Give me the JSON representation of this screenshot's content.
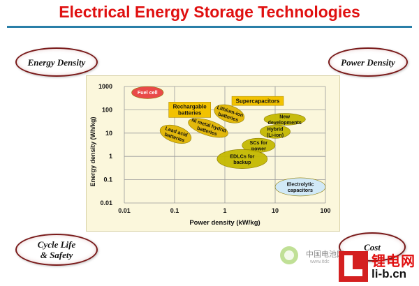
{
  "title": "Electrical Energy Storage Technologies",
  "corners": {
    "top_left": "Energy Density",
    "top_right": "Power Density",
    "bottom_left_line1": "Cycle Life",
    "bottom_left_line2": "& Safety",
    "bottom_right": "Cost"
  },
  "watermark": {
    "text": "中国电池网",
    "url": "www.itdc"
  },
  "logo": {
    "cn": "锂电网",
    "url": "li-b.cn"
  },
  "colors": {
    "title": "#e01010",
    "rule": "#2a7fa8",
    "panel": "#fbf7dc",
    "gold": "#e0b400",
    "olive": "#c4b800",
    "fuel": "#e84040",
    "capacitor": "#cfe8f8"
  },
  "chart_data": {
    "type": "scatter",
    "xlabel": "Power density (kW/kg)",
    "ylabel": "Energy density (Wh/kg)",
    "x_scale": "log",
    "y_scale": "log",
    "xlim": [
      0.01,
      100
    ],
    "ylim": [
      0.01,
      1000
    ],
    "x_ticks": [
      "0.01",
      "0.1",
      "1",
      "10",
      "100"
    ],
    "y_ticks": [
      "1000",
      "100",
      "10",
      "1",
      "0.1",
      "0.01"
    ],
    "grid": true,
    "regions": [
      {
        "label": "Fuel cell",
        "x_range": [
          0.014,
          0.06
        ],
        "y_range": [
          300,
          1000
        ],
        "color": "#e84040",
        "rotate": 0
      },
      {
        "label": "Lead acid batteries",
        "x_range": [
          0.05,
          0.22
        ],
        "y_range": [
          4,
          20
        ],
        "color": "#e0b400",
        "rotate": 18
      },
      {
        "label": "Ni metal hydrid batteries",
        "x_range": [
          0.18,
          1.2
        ],
        "y_range": [
          8,
          35
        ],
        "color": "#e0b400",
        "rotate": 18
      },
      {
        "label": "Lithium-ion batteries",
        "x_range": [
          0.6,
          2.5
        ],
        "y_range": [
          30,
          150
        ],
        "color": "#e0b400",
        "rotate": 18
      },
      {
        "label": "New developments",
        "x_range": [
          6,
          40
        ],
        "y_range": [
          22,
          70
        ],
        "color": "#c4b800",
        "rotate": 0
      },
      {
        "label": "Hybrid (Li-ion)",
        "x_range": [
          5,
          20
        ],
        "y_range": [
          6,
          22
        ],
        "color": "#c4b800",
        "rotate": 0
      },
      {
        "label": "SCs for power",
        "x_range": [
          2.2,
          10
        ],
        "y_range": [
          1.5,
          6
        ],
        "color": "#c4b800",
        "rotate": 0
      },
      {
        "label": "EDLCs for backup",
        "x_range": [
          0.7,
          7
        ],
        "y_range": [
          0.3,
          2
        ],
        "color": "#c4b800",
        "rotate": 0
      },
      {
        "label": "Electrolytic capacitors",
        "x_range": [
          10,
          100
        ],
        "y_range": [
          0.02,
          0.12
        ],
        "color": "#cfe8f8",
        "rotate": 0
      }
    ],
    "annotations": [
      {
        "text": "Rechargable batteries",
        "x": 0.2,
        "y": 100
      },
      {
        "text": "Supercapacitors",
        "x": 4.5,
        "y": 240
      }
    ]
  }
}
